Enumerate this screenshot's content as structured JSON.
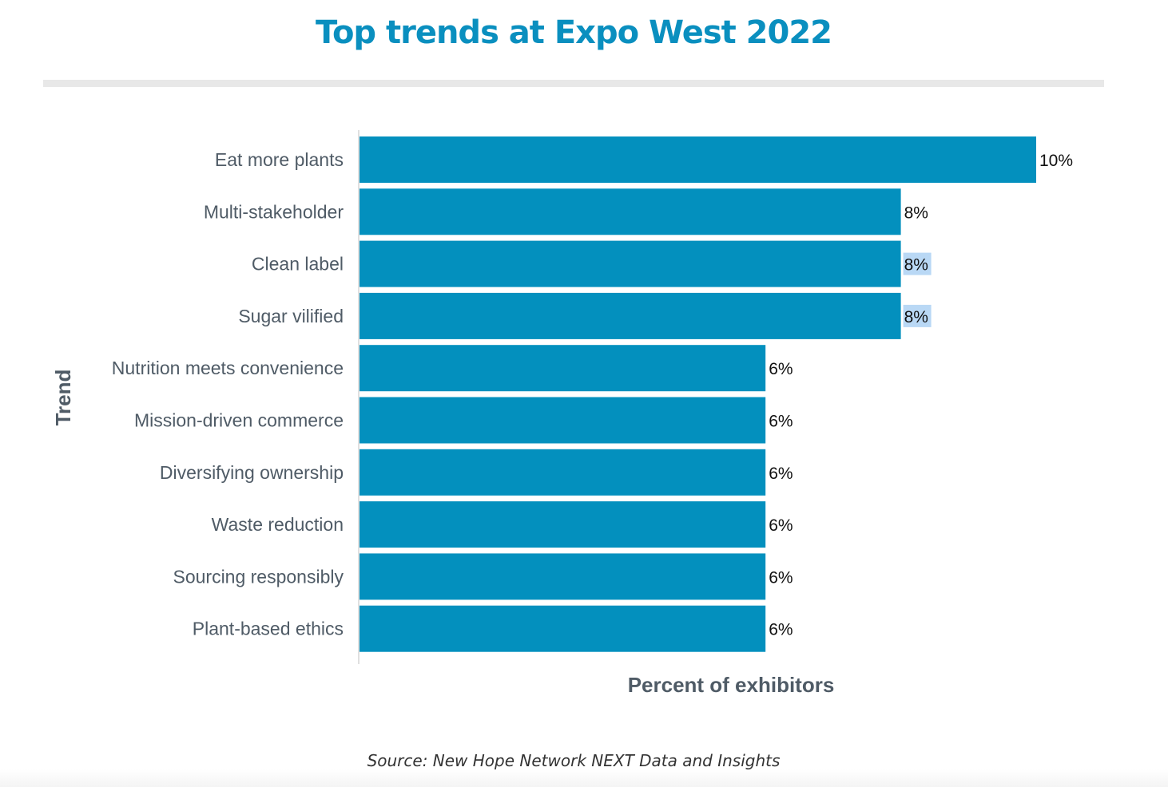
{
  "title": "Top trends at Expo West 2022",
  "source": "Source: New Hope Network NEXT Data and Insights",
  "colors": {
    "bar": "#0390be",
    "title": "#0a8fbf",
    "highlight": "#b9d8f5"
  },
  "chart_data": {
    "type": "bar",
    "orientation": "horizontal",
    "xlabel": "Percent of exhibitors",
    "ylabel": "Trend",
    "xlim": [
      0,
      10
    ],
    "grid": false,
    "categories": [
      "Eat more plants",
      "Multi-stakeholder",
      "Clean label",
      "Sugar vilified",
      "Nutrition meets convenience",
      "Mission-driven commerce",
      "Diversifying ownership",
      "Waste reduction",
      "Sourcing responsibly",
      "Plant-based ethics"
    ],
    "values": [
      10,
      8,
      8,
      8,
      6,
      6,
      6,
      6,
      6,
      6
    ],
    "value_labels": [
      "10%",
      "8%",
      "8%",
      "8%",
      "6%",
      "6%",
      "6%",
      "6%",
      "6%",
      "6%"
    ],
    "highlighted_value_labels": [
      2,
      3
    ]
  }
}
